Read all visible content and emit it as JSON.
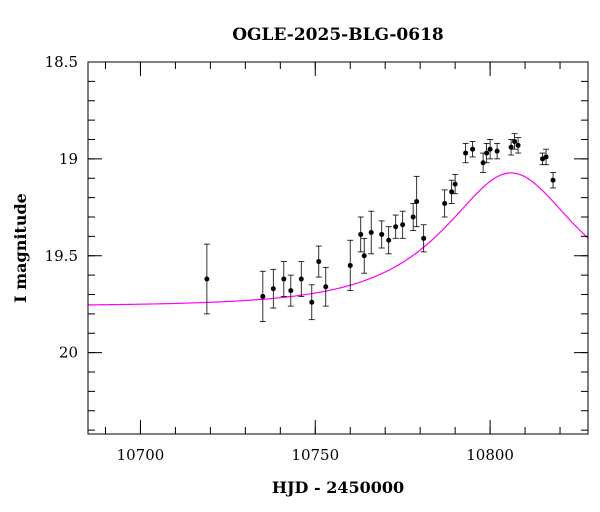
{
  "chart_data": {
    "type": "scatter",
    "title": "OGLE-2025-BLG-0618",
    "xlabel": "HJD - 2450000",
    "ylabel": "I magnitude",
    "xlim": [
      10685,
      10828
    ],
    "ylim": [
      20.42,
      18.5
    ],
    "y_inverted": true,
    "x_major_ticks": [
      10700,
      10750,
      10800
    ],
    "x_minor_step": 10,
    "y_major_ticks": [
      18.5,
      19,
      19.5,
      20
    ],
    "y_minor_step": 0.1,
    "grid": false,
    "colors": {
      "points": "#000000",
      "model": "#ff00ff",
      "axes": "#000000"
    },
    "series": [
      {
        "kind": "points_with_errorbars",
        "points": [
          {
            "x": 10719,
            "y": 19.62,
            "err": 0.18
          },
          {
            "x": 10735,
            "y": 19.71,
            "err": 0.13
          },
          {
            "x": 10738,
            "y": 19.67,
            "err": 0.1
          },
          {
            "x": 10741,
            "y": 19.62,
            "err": 0.09
          },
          {
            "x": 10743,
            "y": 19.68,
            "err": 0.08
          },
          {
            "x": 10746,
            "y": 19.62,
            "err": 0.09
          },
          {
            "x": 10749,
            "y": 19.74,
            "err": 0.09
          },
          {
            "x": 10751,
            "y": 19.53,
            "err": 0.08
          },
          {
            "x": 10753,
            "y": 19.66,
            "err": 0.1
          },
          {
            "x": 10760,
            "y": 19.55,
            "err": 0.13
          },
          {
            "x": 10763,
            "y": 19.39,
            "err": 0.09
          },
          {
            "x": 10764,
            "y": 19.5,
            "err": 0.09
          },
          {
            "x": 10766,
            "y": 19.38,
            "err": 0.11
          },
          {
            "x": 10769,
            "y": 19.39,
            "err": 0.07
          },
          {
            "x": 10771,
            "y": 19.42,
            "err": 0.07
          },
          {
            "x": 10773,
            "y": 19.35,
            "err": 0.06
          },
          {
            "x": 10775,
            "y": 19.34,
            "err": 0.07
          },
          {
            "x": 10778,
            "y": 19.3,
            "err": 0.07
          },
          {
            "x": 10779,
            "y": 19.22,
            "err": 0.13
          },
          {
            "x": 10781,
            "y": 19.41,
            "err": 0.07
          },
          {
            "x": 10787,
            "y": 19.23,
            "err": 0.07
          },
          {
            "x": 10789,
            "y": 19.17,
            "err": 0.06
          },
          {
            "x": 10790,
            "y": 19.13,
            "err": 0.05
          },
          {
            "x": 10793,
            "y": 18.97,
            "err": 0.05
          },
          {
            "x": 10795,
            "y": 18.95,
            "err": 0.04
          },
          {
            "x": 10798,
            "y": 19.02,
            "err": 0.05
          },
          {
            "x": 10799,
            "y": 18.97,
            "err": 0.05
          },
          {
            "x": 10800,
            "y": 18.95,
            "err": 0.05
          },
          {
            "x": 10802,
            "y": 18.96,
            "err": 0.04
          },
          {
            "x": 10806,
            "y": 18.94,
            "err": 0.04
          },
          {
            "x": 10807,
            "y": 18.91,
            "err": 0.04
          },
          {
            "x": 10808,
            "y": 18.93,
            "err": 0.04
          },
          {
            "x": 10815,
            "y": 19.0,
            "err": 0.03
          },
          {
            "x": 10816,
            "y": 18.99,
            "err": 0.04
          },
          {
            "x": 10818,
            "y": 19.11,
            "err": 0.04
          }
        ]
      },
      {
        "kind": "model_curve",
        "model": "point_lens",
        "t0": 10806,
        "tE": 30,
        "u0": 0.6,
        "baseline_mag": 19.76
      }
    ]
  }
}
